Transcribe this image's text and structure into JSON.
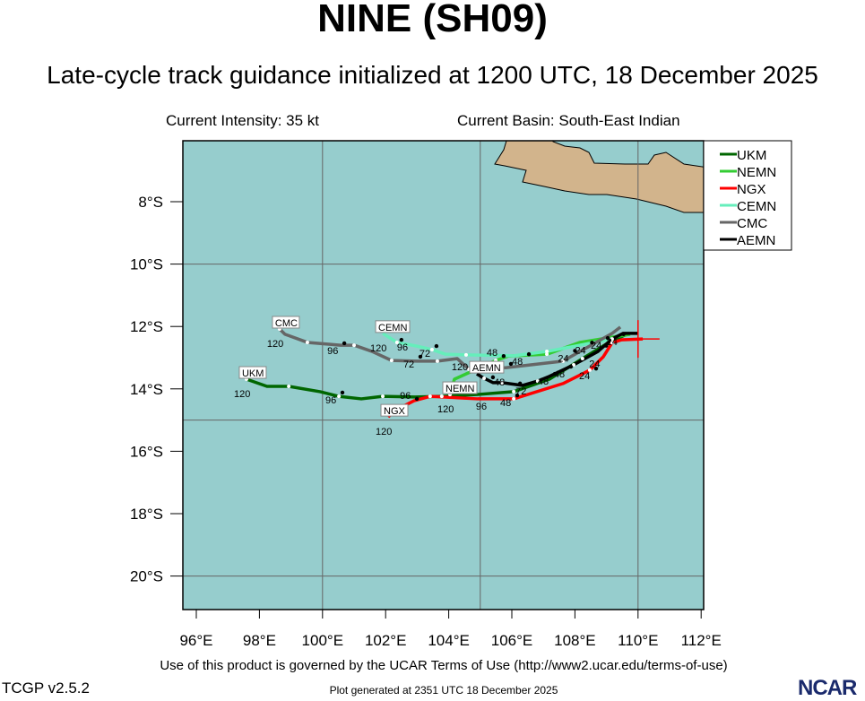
{
  "header": {
    "title": "NINE (SH09)",
    "subtitle": "Late-cycle track guidance initialized at 1200 UTC, 18 December 2025",
    "intensity": "Current Intensity: 35 kt",
    "basin": "Current Basin: South-East Indian"
  },
  "footer": {
    "terms": "Use of this product is governed by the UCAR Terms of Use (http://www2.ucar.edu/terms-of-use)",
    "version": "TCGP v2.5.2",
    "generated": "Plot generated at 2351 UTC   18 December 2025",
    "logo": "NCAR"
  },
  "colors": {
    "ocean": "#96cdcd",
    "land": "#d2b48c",
    "grid": "#666666"
  },
  "chart_data": {
    "type": "map-tracks",
    "lon_range": [
      95.57,
      112.08
    ],
    "lat_range": [
      -21.07,
      -6.05
    ],
    "lon_ticks": [
      {
        "v": 96,
        "label": "96°E"
      },
      {
        "v": 98,
        "label": "98°E"
      },
      {
        "v": 100,
        "label": "100°E"
      },
      {
        "v": 102,
        "label": "102°E"
      },
      {
        "v": 104,
        "label": "104°E"
      },
      {
        "v": 106,
        "label": "106°E"
      },
      {
        "v": 108,
        "label": "108°E"
      },
      {
        "v": 110,
        "label": "110°E"
      },
      {
        "v": 112,
        "label": "112°E"
      }
    ],
    "lat_ticks": [
      {
        "v": -8,
        "label": "8°S"
      },
      {
        "v": -10,
        "label": "10°S"
      },
      {
        "v": -12,
        "label": "12°S"
      },
      {
        "v": -14,
        "label": "14°S"
      },
      {
        "v": -16,
        "label": "16°S"
      },
      {
        "v": -18,
        "label": "18°S"
      },
      {
        "v": -20,
        "label": "20°S"
      }
    ],
    "grid_lon": [
      100,
      105,
      110
    ],
    "grid_lat": [
      -10,
      -15,
      -20
    ],
    "current_position": {
      "lon": 110.0,
      "lat": -12.4
    },
    "legend_position": "top-right",
    "series": [
      {
        "name": "UKM",
        "color": "#006600",
        "end_label": "120",
        "points": [
          [
            109.72,
            -12.22
          ],
          [
            109.18,
            -12.45
          ],
          [
            108.24,
            -13.03
          ],
          [
            107.19,
            -13.69
          ],
          [
            106.06,
            -14.09
          ],
          [
            104.92,
            -14.18
          ],
          [
            103.78,
            -14.24
          ],
          [
            102.93,
            -14.26
          ],
          [
            101.91,
            -14.24
          ],
          [
            101.23,
            -14.32
          ],
          [
            100.52,
            -14.24
          ],
          [
            99.92,
            -14.09
          ],
          [
            98.93,
            -13.92
          ],
          [
            98.24,
            -13.92
          ],
          [
            97.59,
            -13.69
          ]
        ]
      },
      {
        "name": "NEMN",
        "color": "#33cc33",
        "end_label": "120",
        "points": [
          [
            109.75,
            -12.25
          ],
          [
            108.16,
            -12.51
          ],
          [
            107.11,
            -12.89
          ],
          [
            105.89,
            -12.95
          ],
          [
            105.49,
            -13.09
          ],
          [
            104.18,
            -13.69
          ],
          [
            104.04,
            -14.18
          ]
        ]
      },
      {
        "name": "NGX",
        "color": "#ff0000",
        "end_label": "120",
        "points": [
          [
            110.15,
            -12.4
          ],
          [
            109.47,
            -12.43
          ],
          [
            109.18,
            -12.52
          ],
          [
            108.9,
            -12.97
          ],
          [
            108.47,
            -13.4
          ],
          [
            107.62,
            -13.83
          ],
          [
            106.06,
            -14.32
          ],
          [
            104.92,
            -14.32
          ],
          [
            103.41,
            -14.24
          ],
          [
            102.9,
            -14.38
          ],
          [
            102.28,
            -14.7
          ],
          [
            102.08,
            -14.9
          ]
        ]
      },
      {
        "name": "CEMN",
        "color": "#66eebb",
        "end_label": "120",
        "points": [
          [
            109.18,
            -12.4
          ],
          [
            108.16,
            -12.6
          ],
          [
            107.11,
            -12.8
          ],
          [
            106.06,
            -12.94
          ],
          [
            104.55,
            -12.91
          ],
          [
            103.9,
            -12.89
          ],
          [
            103.47,
            -12.74
          ],
          [
            102.99,
            -12.63
          ],
          [
            102.36,
            -12.51
          ],
          [
            101.91,
            -12.22
          ]
        ]
      },
      {
        "name": "CMC",
        "color": "#666666",
        "end_label": "120",
        "points": [
          [
            109.44,
            -12.02
          ],
          [
            109.18,
            -12.22
          ],
          [
            107.62,
            -13.11
          ],
          [
            105.83,
            -13.32
          ],
          [
            104.64,
            -13.37
          ],
          [
            104.27,
            -13.03
          ],
          [
            103.64,
            -13.11
          ],
          [
            102.99,
            -13.11
          ],
          [
            102.19,
            -13.09
          ],
          [
            101.57,
            -12.8
          ],
          [
            101.0,
            -12.6
          ],
          [
            100.57,
            -12.6
          ],
          [
            99.52,
            -12.51
          ],
          [
            98.81,
            -12.25
          ],
          [
            98.64,
            -12.08
          ]
        ]
      },
      {
        "name": "AEMN",
        "color": "#000000",
        "end_label": "120",
        "points": [
          [
            110.01,
            -12.22
          ],
          [
            109.53,
            -12.22
          ],
          [
            109.18,
            -12.4
          ],
          [
            108.73,
            -12.8
          ],
          [
            107.96,
            -13.23
          ],
          [
            107.19,
            -13.6
          ],
          [
            106.82,
            -13.75
          ],
          [
            106.34,
            -13.89
          ],
          [
            105.69,
            -13.8
          ],
          [
            105.4,
            -13.8
          ],
          [
            105.12,
            -13.66
          ],
          [
            104.89,
            -13.52
          ]
        ]
      }
    ],
    "tau_labels": [
      {
        "text": "96",
        "lon": 100.35,
        "lat": -12.74
      },
      {
        "text": "72",
        "lon": 102.76,
        "lat": -13.17
      },
      {
        "text": "96",
        "lon": 102.16,
        "lat": -12.63
      },
      {
        "text": "72",
        "lon": 103.27,
        "lat": -12.83
      },
      {
        "text": "96",
        "lon": 100.29,
        "lat": -14.32
      },
      {
        "text": "96",
        "lon": 102.65,
        "lat": -14.52
      },
      {
        "text": "48",
        "lon": 105.83,
        "lat": -14.41
      },
      {
        "text": "24",
        "lon": 108.33,
        "lat": -13.55
      },
      {
        "text": "48",
        "lon": 106.2,
        "lat": -13.09
      },
      {
        "text": "48",
        "lon": 105.63,
        "lat": -13.4
      },
      {
        "text": "72",
        "lon": 105.92,
        "lat": -14.03
      },
      {
        "text": "48",
        "lon": 107.02,
        "lat": -13.72
      },
      {
        "text": "96",
        "lon": 105.06,
        "lat": -13.83
      },
      {
        "text": "48",
        "lon": 107.53,
        "lat": -13.49
      },
      {
        "text": "48",
        "lon": 105.4,
        "lat": -13.15
      },
      {
        "text": "24",
        "lon": 107.66,
        "lat": -12.98
      },
      {
        "text": "24",
        "lon": 108.2,
        "lat": -12.72
      },
      {
        "text": "24",
        "lon": 108.7,
        "lat": -12.57
      },
      {
        "text": "24",
        "lon": 108.65,
        "lat": -12.82
      },
      {
        "text": "24",
        "lon": 109.2,
        "lat": -12.45
      }
    ]
  }
}
